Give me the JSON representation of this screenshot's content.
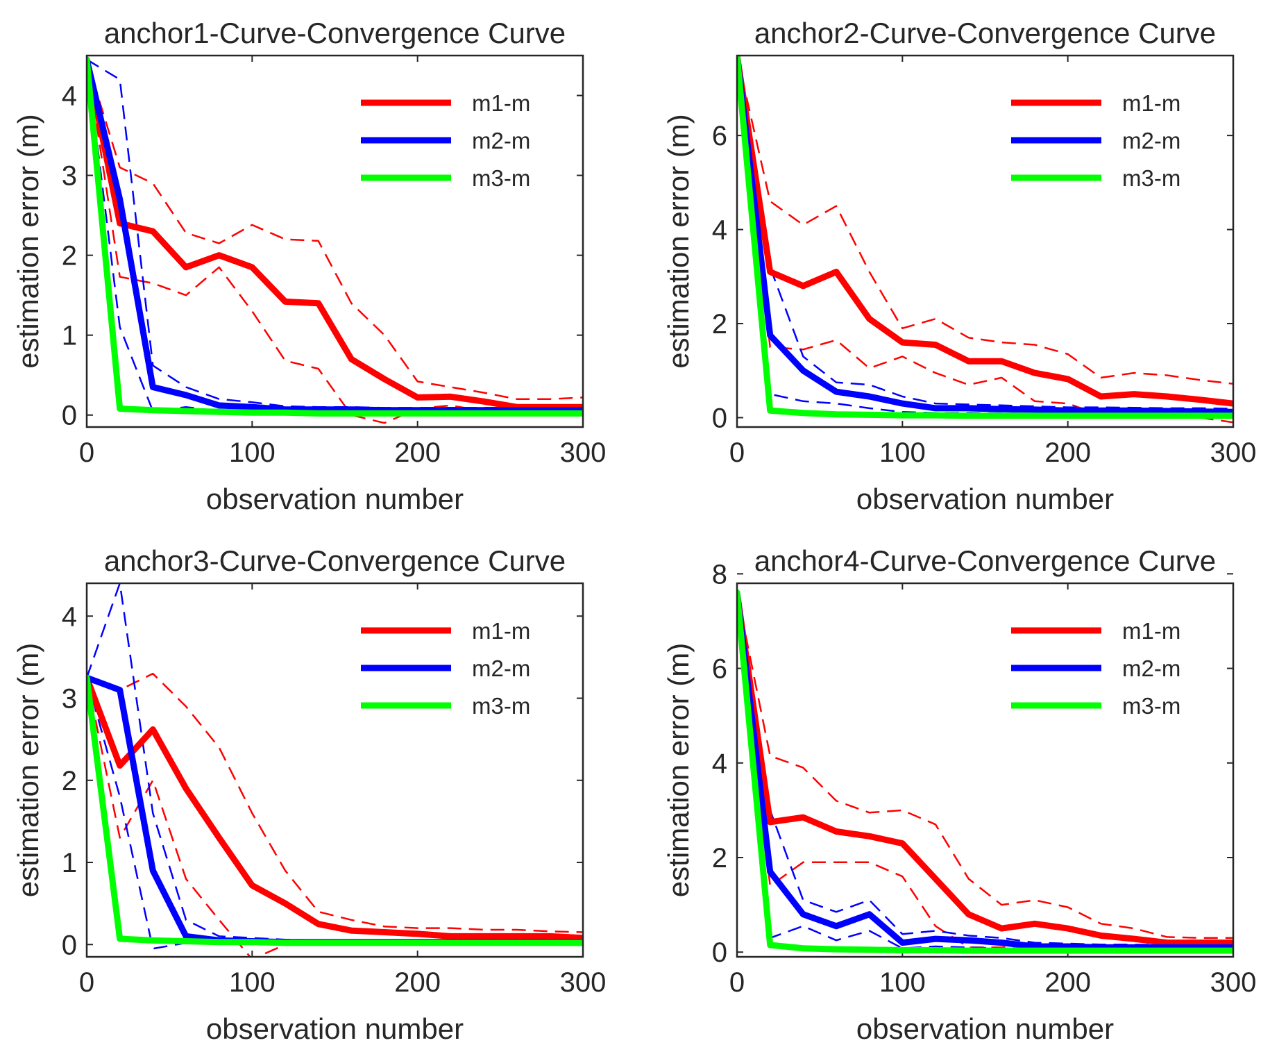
{
  "chart_data": [
    {
      "type": "line",
      "title": "anchor1-Curve-Convergence Curve",
      "xlabel": "observation number",
      "ylabel": "estimation error (m)",
      "xlim": [
        0,
        300
      ],
      "ylim": [
        -0.15,
        4.5
      ],
      "xticks": [
        0,
        100,
        200,
        300
      ],
      "yticks": [
        0,
        1,
        2,
        3,
        4
      ],
      "legend_position": "top-right",
      "x": [
        0,
        20,
        40,
        60,
        80,
        100,
        120,
        140,
        160,
        180,
        200,
        220,
        240,
        260,
        280,
        300
      ],
      "series": [
        {
          "name": "m1-m",
          "color": "#ff0000",
          "values": [
            4.45,
            2.4,
            2.3,
            1.85,
            2.0,
            1.85,
            1.42,
            1.4,
            0.7,
            0.45,
            0.22,
            0.23,
            0.17,
            0.1,
            0.1,
            0.1
          ],
          "upper": [
            4.45,
            3.1,
            2.9,
            2.28,
            2.15,
            2.38,
            2.2,
            2.18,
            1.4,
            1.0,
            0.42,
            0.35,
            0.28,
            0.2,
            0.2,
            0.22
          ],
          "lower": [
            4.45,
            1.73,
            1.65,
            1.5,
            1.85,
            1.3,
            0.68,
            0.58,
            0.0,
            -0.1,
            0.08,
            0.12,
            0.05,
            0.02,
            0.02,
            0.02
          ]
        },
        {
          "name": "m2-m",
          "color": "#0000ff",
          "values": [
            4.45,
            2.7,
            0.35,
            0.25,
            0.12,
            0.1,
            0.07,
            0.07,
            0.07,
            0.06,
            0.06,
            0.06,
            0.06,
            0.06,
            0.06,
            0.06
          ],
          "upper": [
            4.45,
            4.2,
            0.62,
            0.35,
            0.2,
            0.16,
            0.11,
            0.1,
            0.1,
            0.09,
            0.09,
            0.09,
            0.09,
            0.09,
            0.09,
            0.09
          ],
          "lower": [
            4.45,
            1.1,
            0.05,
            0.1,
            0.05,
            0.04,
            0.03,
            0.03,
            0.03,
            0.03,
            0.03,
            0.03,
            0.03,
            0.03,
            0.03,
            0.03
          ]
        },
        {
          "name": "m3-m",
          "color": "#00ff00",
          "values": [
            4.45,
            0.08,
            0.06,
            0.05,
            0.04,
            0.03,
            0.03,
            0.02,
            0.02,
            0.02,
            0.02,
            0.02,
            0.02,
            0.02,
            0.02,
            0.02
          ]
        }
      ]
    },
    {
      "type": "line",
      "title": "anchor2-Curve-Convergence Curve",
      "xlabel": "observation number",
      "ylabel": "estimation error (m)",
      "xlim": [
        0,
        300
      ],
      "ylim": [
        -0.2,
        7.7
      ],
      "xticks": [
        0,
        100,
        200,
        300
      ],
      "yticks": [
        0,
        2,
        4,
        6
      ],
      "legend_position": "top-right",
      "x": [
        0,
        20,
        40,
        60,
        80,
        100,
        120,
        140,
        160,
        180,
        200,
        220,
        240,
        260,
        280,
        300
      ],
      "series": [
        {
          "name": "m1-m",
          "color": "#ff0000",
          "values": [
            7.7,
            3.1,
            2.8,
            3.1,
            2.1,
            1.6,
            1.55,
            1.2,
            1.2,
            0.95,
            0.82,
            0.45,
            0.5,
            0.45,
            0.38,
            0.3
          ],
          "upper": [
            7.7,
            4.6,
            4.1,
            4.5,
            3.1,
            1.9,
            2.1,
            1.7,
            1.6,
            1.55,
            1.35,
            0.85,
            0.95,
            0.9,
            0.8,
            0.72
          ],
          "lower": [
            7.7,
            1.5,
            1.45,
            1.65,
            1.05,
            1.3,
            0.95,
            0.7,
            0.85,
            0.35,
            0.3,
            0.05,
            0.05,
            0.05,
            0.0,
            -0.1
          ]
        },
        {
          "name": "m2-m",
          "color": "#0000ff",
          "values": [
            7.7,
            1.75,
            1.0,
            0.55,
            0.45,
            0.3,
            0.2,
            0.2,
            0.18,
            0.17,
            0.15,
            0.15,
            0.15,
            0.14,
            0.13,
            0.12
          ],
          "upper": [
            7.7,
            3.2,
            1.3,
            0.75,
            0.7,
            0.45,
            0.3,
            0.28,
            0.26,
            0.24,
            0.22,
            0.22,
            0.21,
            0.2,
            0.2,
            0.19
          ],
          "lower": [
            7.7,
            0.5,
            0.35,
            0.3,
            0.2,
            0.12,
            0.1,
            0.1,
            0.09,
            0.08,
            0.07,
            0.07,
            0.07,
            0.06,
            0.06,
            0.05
          ]
        },
        {
          "name": "m3-m",
          "color": "#00ff00",
          "values": [
            7.7,
            0.15,
            0.1,
            0.07,
            0.06,
            0.05,
            0.05,
            0.04,
            0.04,
            0.04,
            0.04,
            0.04,
            0.04,
            0.04,
            0.04,
            0.04
          ]
        }
      ]
    },
    {
      "type": "line",
      "title": "anchor3-Curve-Convergence Curve",
      "xlabel": "observation number",
      "ylabel": "estimation error (m)",
      "xlim": [
        0,
        300
      ],
      "ylim": [
        -0.15,
        4.4
      ],
      "xticks": [
        0,
        100,
        200,
        300
      ],
      "yticks": [
        0,
        1,
        2,
        3,
        4
      ],
      "legend_position": "top-right",
      "x": [
        0,
        20,
        40,
        60,
        80,
        100,
        120,
        140,
        160,
        180,
        200,
        220,
        240,
        260,
        280,
        300
      ],
      "series": [
        {
          "name": "m1-m",
          "color": "#ff0000",
          "values": [
            3.25,
            2.18,
            2.62,
            1.9,
            1.3,
            0.72,
            0.5,
            0.25,
            0.17,
            0.15,
            0.13,
            0.1,
            0.1,
            0.1,
            0.1,
            0.08
          ],
          "upper": [
            3.25,
            3.1,
            3.3,
            2.9,
            2.4,
            1.6,
            0.9,
            0.4,
            0.3,
            0.22,
            0.2,
            0.2,
            0.18,
            0.18,
            0.16,
            0.15
          ],
          "lower": [
            3.25,
            1.3,
            2.0,
            0.8,
            0.3,
            -0.18,
            0.0,
            0.05,
            0.05,
            0.04,
            0.03,
            0.03,
            0.02,
            0.02,
            0.02,
            0.02
          ]
        },
        {
          "name": "m2-m",
          "color": "#0000ff",
          "values": [
            3.25,
            3.1,
            0.9,
            0.1,
            0.05,
            0.04,
            0.03,
            0.03,
            0.03,
            0.03,
            0.03,
            0.03,
            0.03,
            0.03,
            0.03,
            0.03
          ],
          "upper": [
            3.25,
            4.4,
            1.6,
            0.3,
            0.1,
            0.08,
            0.06,
            0.05,
            0.05,
            0.05,
            0.05,
            0.05,
            0.05,
            0.05,
            0.05,
            0.05
          ],
          "lower": [
            3.25,
            1.8,
            -0.05,
            0.02,
            0.01,
            0.01,
            0.01,
            0.01,
            0.01,
            0.01,
            0.01,
            0.01,
            0.01,
            0.01,
            0.01,
            0.01
          ]
        },
        {
          "name": "m3-m",
          "color": "#00ff00",
          "values": [
            3.25,
            0.07,
            0.05,
            0.04,
            0.03,
            0.03,
            0.02,
            0.02,
            0.02,
            0.02,
            0.02,
            0.02,
            0.02,
            0.02,
            0.02,
            0.02
          ]
        }
      ]
    },
    {
      "type": "line",
      "title": "anchor4-Curve-Convergence Curve",
      "xlabel": "observation number",
      "ylabel": "estimation error (m)",
      "xlim": [
        0,
        300
      ],
      "ylim": [
        -0.1,
        7.8
      ],
      "xticks": [
        0,
        100,
        200,
        300
      ],
      "yticks": [
        0,
        2,
        4,
        6,
        8
      ],
      "legend_position": "top-right",
      "x": [
        0,
        20,
        40,
        60,
        80,
        100,
        120,
        140,
        160,
        180,
        200,
        220,
        240,
        260,
        280,
        300
      ],
      "series": [
        {
          "name": "m1-m",
          "color": "#ff0000",
          "values": [
            7.6,
            2.75,
            2.85,
            2.55,
            2.45,
            2.3,
            1.55,
            0.8,
            0.5,
            0.6,
            0.5,
            0.35,
            0.28,
            0.2,
            0.2,
            0.2
          ],
          "upper": [
            7.6,
            4.15,
            3.9,
            3.2,
            2.95,
            3.0,
            2.7,
            1.55,
            1.0,
            1.1,
            0.95,
            0.6,
            0.5,
            0.32,
            0.3,
            0.3
          ],
          "lower": [
            7.6,
            1.4,
            1.9,
            1.9,
            1.9,
            1.6,
            0.55,
            0.1,
            0.1,
            0.15,
            0.1,
            0.08,
            0.05,
            0.05,
            0.05,
            0.05
          ]
        },
        {
          "name": "m2-m",
          "color": "#0000ff",
          "values": [
            7.6,
            1.7,
            0.8,
            0.55,
            0.8,
            0.2,
            0.28,
            0.25,
            0.2,
            0.12,
            0.12,
            0.1,
            0.1,
            0.1,
            0.1,
            0.1
          ],
          "upper": [
            7.6,
            3.0,
            1.1,
            0.85,
            1.1,
            0.38,
            0.45,
            0.35,
            0.3,
            0.2,
            0.18,
            0.16,
            0.16,
            0.15,
            0.15,
            0.15
          ],
          "lower": [
            7.6,
            0.3,
            0.55,
            0.25,
            0.45,
            0.08,
            0.12,
            0.1,
            0.08,
            0.05,
            0.05,
            0.04,
            0.04,
            0.04,
            0.04,
            0.04
          ]
        },
        {
          "name": "m3-m",
          "color": "#00ff00",
          "values": [
            7.6,
            0.15,
            0.08,
            0.06,
            0.05,
            0.04,
            0.04,
            0.03,
            0.03,
            0.03,
            0.03,
            0.03,
            0.03,
            0.03,
            0.03,
            0.03
          ]
        }
      ]
    }
  ]
}
